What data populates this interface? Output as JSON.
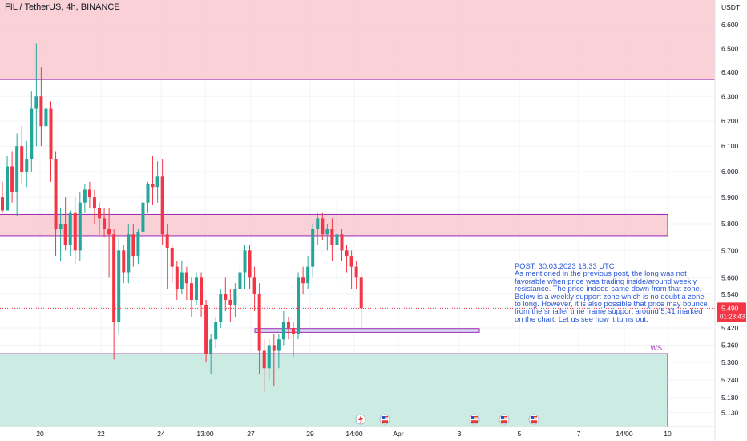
{
  "header": {
    "title": "FIL / TetherUS, 4h, BINANCE"
  },
  "annotation": {
    "lines": [
      "POST: 30.03.2023 18:33 UTC",
      "As mentioned in the previous post, the long was not",
      "favorable when price was trading inside/around weekly",
      "resistance. The price indeed came down from that zone.",
      "Below is a weekly support zone which is no doubt a zone",
      "to long. However, it is also possible that price may bounce",
      "from the smaller time frame support around 5.41 marked",
      "on the chart. Let us see how it turns out."
    ]
  },
  "zone_labels": {
    "ws1": "WS1"
  },
  "price_badge": {
    "price": "5.490",
    "countdown": "01:23:43"
  },
  "colors": {
    "up": "#26a69a",
    "down": "#f23645",
    "resistance_fill": "#f8c9d0",
    "support_fill": "#c8eae2",
    "zone_border": "#9c27b0",
    "small_support_fill": "#d6dcf5",
    "note_text": "#2a57d6"
  },
  "event_icons": [
    "lightning-icon",
    "us-flag-icon",
    "us-flag-icon",
    "us-flag-icon",
    "us-flag-icon",
    "us-flag-icon"
  ],
  "chart_data": {
    "type": "candlestick",
    "symbol": "FIL / TetherUS",
    "timeframe": "4h",
    "exchange": "BINANCE",
    "y_axis": {
      "unit": "USDT",
      "ticks": [
        "6.600",
        "6.500",
        "6.400",
        "6.300",
        "6.200",
        "6.100",
        "6.000",
        "5.900",
        "5.800",
        "5.700",
        "5.600",
        "5.540",
        "5.490",
        "5.420",
        "5.360",
        "5.300",
        "5.240",
        "5.180",
        "5.130"
      ],
      "log_scale": true
    },
    "x_axis": {
      "ticks": [
        "20",
        "22",
        "24",
        "13:00",
        "27",
        "29",
        "14:00",
        "Apr",
        "3",
        "5",
        "7",
        "14/00",
        "10"
      ]
    },
    "current_price": 5.49,
    "zones": [
      {
        "name": "resistance-top",
        "from": 6.37,
        "to": 6.72
      },
      {
        "name": "weekly-resistance",
        "from": 5.755,
        "to": 5.835
      },
      {
        "name": "weekly-support",
        "label": "WS1",
        "from": 5.05,
        "to": 5.33
      },
      {
        "name": "small-support",
        "from": 5.405,
        "to": 5.418
      }
    ],
    "candles": [
      [
        5.9,
        5.96,
        5.84,
        5.85
      ],
      [
        5.85,
        6.06,
        5.85,
        6.02
      ],
      [
        6.02,
        6.08,
        5.88,
        5.92
      ],
      [
        5.92,
        6.15,
        5.83,
        6.1
      ],
      [
        6.1,
        6.18,
        5.95,
        6.0
      ],
      [
        6.0,
        6.12,
        5.94,
        6.05
      ],
      [
        6.05,
        6.32,
        6.0,
        6.25
      ],
      [
        6.25,
        6.52,
        6.1,
        6.3
      ],
      [
        6.3,
        6.42,
        6.1,
        6.18
      ],
      [
        6.18,
        6.3,
        6.05,
        6.25
      ],
      [
        6.25,
        6.28,
        5.96,
        6.05
      ],
      [
        6.05,
        6.08,
        5.68,
        5.78
      ],
      [
        5.78,
        5.86,
        5.66,
        5.8
      ],
      [
        5.8,
        5.9,
        5.7,
        5.72
      ],
      [
        5.72,
        5.85,
        5.68,
        5.84
      ],
      [
        5.84,
        5.9,
        5.65,
        5.7
      ],
      [
        5.7,
        5.92,
        5.66,
        5.88
      ],
      [
        5.88,
        5.95,
        5.84,
        5.93
      ],
      [
        5.93,
        5.96,
        5.86,
        5.9
      ],
      [
        5.9,
        5.93,
        5.8,
        5.86
      ],
      [
        5.86,
        5.88,
        5.76,
        5.82
      ],
      [
        5.82,
        5.86,
        5.75,
        5.78
      ],
      [
        5.78,
        5.86,
        5.6,
        5.76
      ],
      [
        5.76,
        5.78,
        5.31,
        5.44
      ],
      [
        5.44,
        5.75,
        5.4,
        5.7
      ],
      [
        5.7,
        5.72,
        5.58,
        5.62
      ],
      [
        5.62,
        5.8,
        5.58,
        5.76
      ],
      [
        5.76,
        5.8,
        5.64,
        5.68
      ],
      [
        5.68,
        5.78,
        5.65,
        5.77
      ],
      [
        5.77,
        5.92,
        5.74,
        5.88
      ],
      [
        5.88,
        5.96,
        5.84,
        5.95
      ],
      [
        5.95,
        6.06,
        5.87,
        5.94
      ],
      [
        5.94,
        6.04,
        5.88,
        5.98
      ],
      [
        5.98,
        6.05,
        5.72,
        5.76
      ],
      [
        5.76,
        5.8,
        5.56,
        5.71
      ],
      [
        5.71,
        5.72,
        5.58,
        5.64
      ],
      [
        5.64,
        5.66,
        5.52,
        5.56
      ],
      [
        5.56,
        5.66,
        5.54,
        5.62
      ],
      [
        5.62,
        5.64,
        5.52,
        5.58
      ],
      [
        5.58,
        5.6,
        5.46,
        5.52
      ],
      [
        5.52,
        5.62,
        5.5,
        5.6
      ],
      [
        5.6,
        5.62,
        5.46,
        5.5
      ],
      [
        5.5,
        5.52,
        5.3,
        5.33
      ],
      [
        5.33,
        5.4,
        5.26,
        5.38
      ],
      [
        5.38,
        5.46,
        5.35,
        5.44
      ],
      [
        5.44,
        5.56,
        5.42,
        5.54
      ],
      [
        5.54,
        5.6,
        5.48,
        5.52
      ],
      [
        5.52,
        5.56,
        5.44,
        5.5
      ],
      [
        5.5,
        5.58,
        5.46,
        5.56
      ],
      [
        5.56,
        5.66,
        5.52,
        5.62
      ],
      [
        5.62,
        5.72,
        5.56,
        5.7
      ],
      [
        5.7,
        5.72,
        5.56,
        5.6
      ],
      [
        5.6,
        5.64,
        5.48,
        5.54
      ],
      [
        5.54,
        5.58,
        5.26,
        5.34
      ],
      [
        5.34,
        5.38,
        5.2,
        5.28
      ],
      [
        5.28,
        5.38,
        5.24,
        5.36
      ],
      [
        5.36,
        5.4,
        5.22,
        5.34
      ],
      [
        5.34,
        5.4,
        5.28,
        5.38
      ],
      [
        5.38,
        5.48,
        5.36,
        5.44
      ],
      [
        5.44,
        5.46,
        5.38,
        5.42
      ],
      [
        5.42,
        5.44,
        5.32,
        5.4
      ],
      [
        5.4,
        5.62,
        5.38,
        5.6
      ],
      [
        5.6,
        5.64,
        5.54,
        5.58
      ],
      [
        5.58,
        5.68,
        5.56,
        5.64
      ],
      [
        5.64,
        5.8,
        5.6,
        5.78
      ],
      [
        5.78,
        5.84,
        5.72,
        5.82
      ],
      [
        5.82,
        5.84,
        5.74,
        5.76
      ],
      [
        5.76,
        5.8,
        5.7,
        5.78
      ],
      [
        5.78,
        5.82,
        5.66,
        5.72
      ],
      [
        5.72,
        5.88,
        5.58,
        5.76
      ],
      [
        5.76,
        5.78,
        5.66,
        5.7
      ],
      [
        5.7,
        5.72,
        5.62,
        5.68
      ],
      [
        5.68,
        5.7,
        5.56,
        5.64
      ],
      [
        5.64,
        5.66,
        5.56,
        5.6
      ],
      [
        5.6,
        5.62,
        5.42,
        5.49
      ]
    ]
  }
}
